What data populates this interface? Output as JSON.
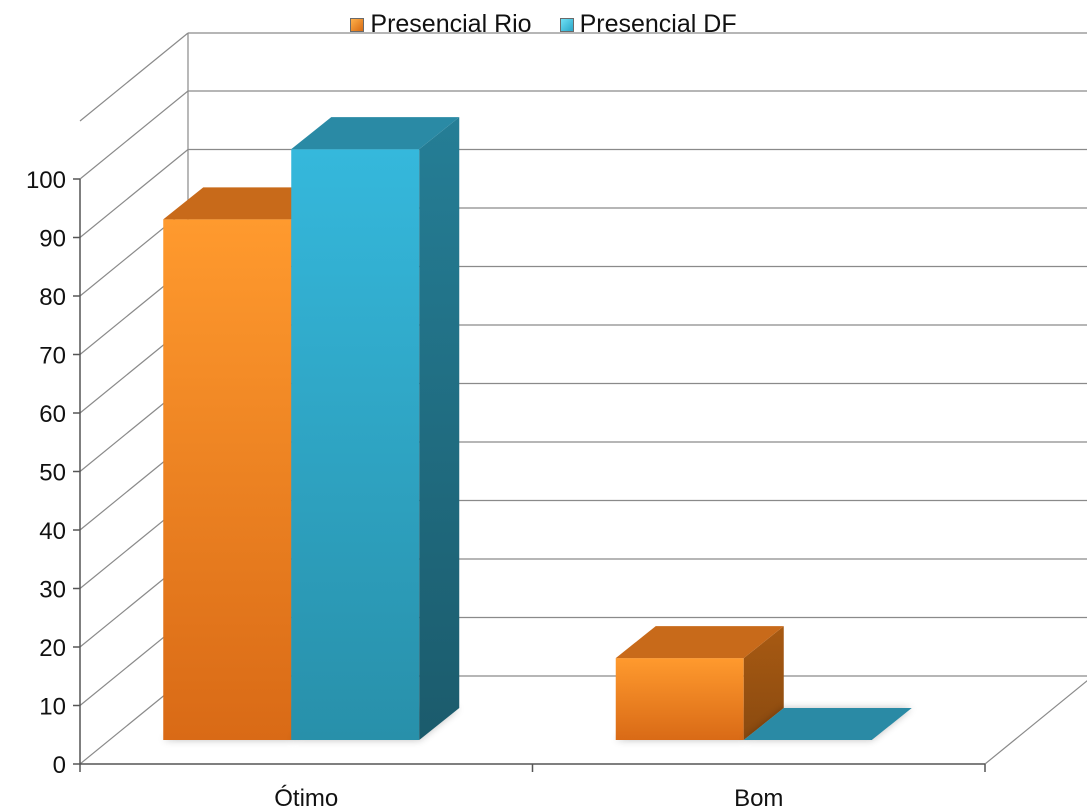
{
  "chart_data": {
    "type": "bar",
    "style": "3d-clustered-column",
    "categories": [
      "Ótimo",
      "Bom"
    ],
    "series": [
      {
        "name": "Presencial Rio",
        "values": [
          89,
          14
        ],
        "color": "#f5871f"
      },
      {
        "name": "Presencial DF",
        "values": [
          101,
          0
        ],
        "color": "#2aa6c8"
      }
    ],
    "ylim": [
      0,
      100
    ],
    "yticks": [
      0,
      10,
      20,
      30,
      40,
      50,
      60,
      70,
      80,
      90,
      100
    ],
    "grid": true,
    "legend_position": "top-center",
    "title": "",
    "xlabel": "",
    "ylabel": ""
  }
}
